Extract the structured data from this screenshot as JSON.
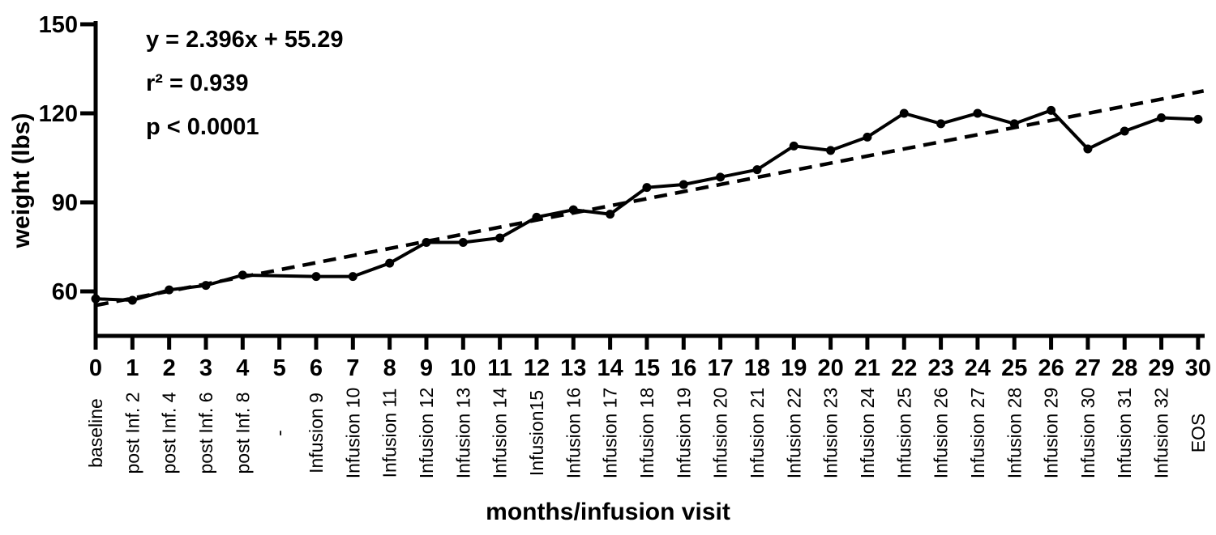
{
  "figure": {
    "background": "#ffffff",
    "ink": "#000000"
  },
  "annotation": {
    "line1": "y = 2.396x + 55.29",
    "line2": "r² = 0.939",
    "line3": "p < 0.0001"
  },
  "chart_data": {
    "type": "line",
    "title": "",
    "xlabel": "months/infusion visit",
    "ylabel": "weight (lbs)",
    "xlim": [
      0,
      30
    ],
    "ylim": [
      45,
      150
    ],
    "grid": "off",
    "legend": "none",
    "y_ticks": [
      60,
      90,
      120,
      150
    ],
    "x_ticks": [
      0,
      1,
      2,
      3,
      4,
      5,
      6,
      7,
      8,
      9,
      10,
      11,
      12,
      13,
      14,
      15,
      16,
      17,
      18,
      19,
      20,
      21,
      22,
      23,
      24,
      25,
      26,
      27,
      28,
      29,
      30
    ],
    "x_visit_labels": [
      "baseline",
      "post Inf. 2",
      "post Inf. 4",
      "post Inf. 6",
      "post Inf. 8",
      "-",
      "Infusion 9",
      "Infusion 10",
      "Infusion 11",
      "Infusion 12",
      "Infusion 13",
      "Infusion 14",
      "Infusion15",
      "Infusion 16",
      "Infusion 17",
      "Infusion 18",
      "Infusion 19",
      "Infusion 20",
      "Infusion 21",
      "Infusion 22",
      "Infusion 23",
      "Infusion 24",
      "Infusion 25",
      "Infusion 26",
      "Infusion 27",
      "Infusion 28",
      "Infusion 29",
      "Infusion 30",
      "Infusion 31",
      "Infusion 32",
      "EOS"
    ],
    "series": [
      {
        "name": "weight (lbs)",
        "marker": "filled-circle",
        "line_style": "solid",
        "color": "#000000",
        "x": [
          0,
          1,
          2,
          3,
          4,
          6,
          7,
          8,
          9,
          10,
          11,
          12,
          13,
          14,
          15,
          16,
          17,
          18,
          19,
          20,
          21,
          22,
          23,
          24,
          25,
          26,
          27,
          28,
          29,
          30
        ],
        "y": [
          57.5,
          57,
          60.5,
          62,
          65.5,
          65,
          65,
          69.5,
          76.5,
          76.5,
          78,
          85,
          87.5,
          86,
          95,
          96,
          98.5,
          101,
          109,
          107.5,
          112,
          120,
          116.5,
          120,
          116.5,
          121,
          108,
          114,
          118.5,
          118
        ]
      }
    ],
    "trendline": {
      "label": "linear regression",
      "style": "dashed",
      "color": "#000000",
      "slope": 2.396,
      "intercept": 55.29,
      "x_start": 0,
      "x_end": 30.15
    },
    "stats": {
      "equation": "y = 2.396x + 55.29",
      "r_squared": 0.939,
      "p": "< 0.0001"
    }
  }
}
